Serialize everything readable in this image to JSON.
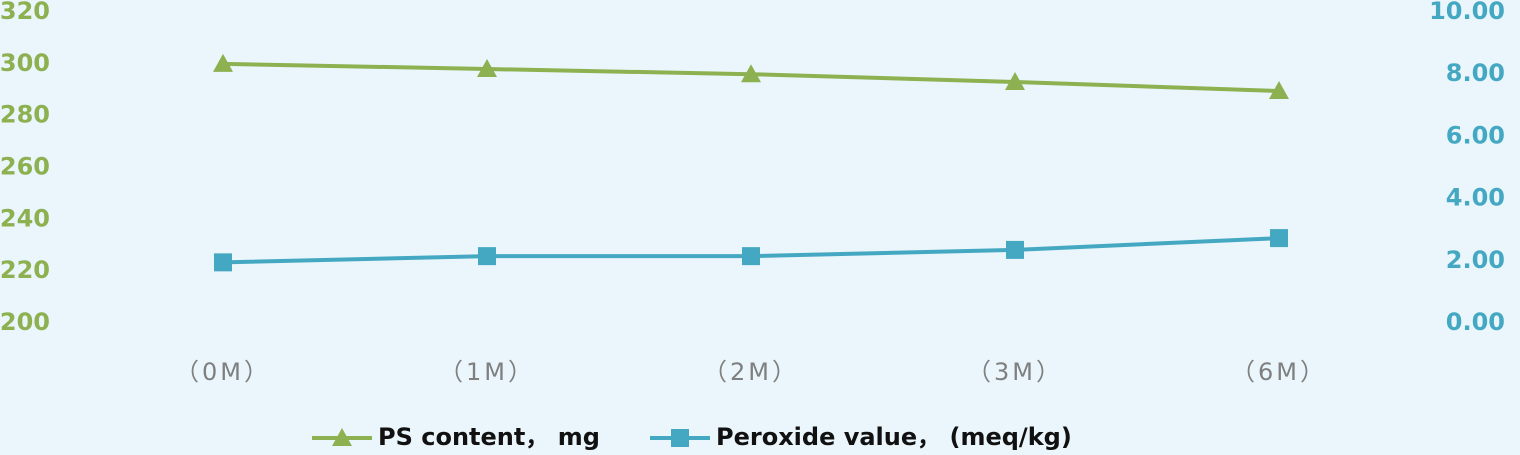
{
  "chart_data": {
    "type": "line",
    "categories": [
      "（0M）",
      "（1M）",
      "（2M）",
      "（3M）",
      "（6M）"
    ],
    "series": [
      {
        "name": "PS content， mg",
        "color": "#8db150",
        "marker": "triangle",
        "values": [
          300,
          298,
          296,
          293,
          289.5
        ]
      },
      {
        "name": "Peroxide value，  (meq/kg)",
        "color": "#45a8c2",
        "marker": "square",
        "axis": "y2",
        "values": [
          1.95,
          2.15,
          2.15,
          2.35,
          2.73
        ]
      }
    ],
    "ylim": [
      200,
      320
    ],
    "yticks": [
      200,
      220,
      240,
      260,
      280,
      300,
      320
    ],
    "y2lim": [
      0,
      10
    ],
    "y2ticks": [
      {
        "value": 0,
        "label": "0.00"
      },
      {
        "value": 2,
        "label": "2.00"
      },
      {
        "value": 4,
        "label": "4.00"
      },
      {
        "value": 6,
        "label": "6.00"
      },
      {
        "value": 8,
        "label": "8.00"
      },
      {
        "value": 10,
        "label": "10.00"
      }
    ],
    "grid": false,
    "legend": "bottom"
  }
}
